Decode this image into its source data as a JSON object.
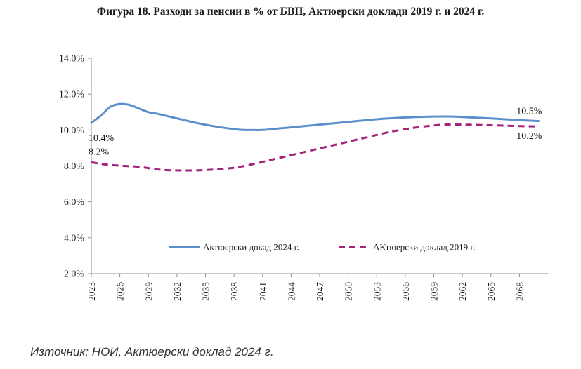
{
  "title": "Фигура 18. Разходи за пенсии в % от БВП, Актюерски доклади 2019 г. и  2024 г.",
  "source": "Източник: НОИ, Актюерски доклад 2024 г.",
  "colors": {
    "series_2024": "#5b8fcc",
    "series_2019": "#a3237c",
    "axis": "#8c8c8c"
  },
  "chart_data": {
    "type": "line",
    "ylim": [
      2,
      14
    ],
    "y_ticks": [
      "2.0%",
      "4.0%",
      "6.0%",
      "8.0%",
      "10.0%",
      "12.0%",
      "14.0%"
    ],
    "x_range": [
      2023,
      2071
    ],
    "x_ticks": [
      "2023",
      "2026",
      "2029",
      "2032",
      "2035",
      "2038",
      "2041",
      "2044",
      "2047",
      "2050",
      "2053",
      "2056",
      "2059",
      "2062",
      "2065",
      "2068"
    ],
    "legend_position": "bottom-center",
    "series": [
      {
        "name": "Актюерски докад 2024 г.",
        "style": "solid",
        "x": [
          2023,
          2024,
          2025,
          2026,
          2027,
          2028,
          2029,
          2030,
          2032,
          2034,
          2036,
          2038,
          2039,
          2040,
          2041,
          2043,
          2045,
          2048,
          2050,
          2053,
          2056,
          2059,
          2061,
          2063,
          2065,
          2068,
          2070
        ],
        "y": [
          10.4,
          10.8,
          11.3,
          11.45,
          11.4,
          11.2,
          11.0,
          10.9,
          10.65,
          10.4,
          10.2,
          10.05,
          10.0,
          10.0,
          10.0,
          10.1,
          10.2,
          10.35,
          10.45,
          10.6,
          10.7,
          10.75,
          10.75,
          10.7,
          10.65,
          10.55,
          10.5
        ],
        "start_label": "10.4%",
        "end_label": "10.5%"
      },
      {
        "name": "АКтюерски доклад 2019 г.",
        "style": "dashed",
        "x": [
          2023,
          2025,
          2028,
          2030,
          2032,
          2034,
          2036,
          2038,
          2040,
          2042,
          2044,
          2046,
          2048,
          2050,
          2052,
          2054,
          2056,
          2058,
          2060,
          2062,
          2064,
          2066,
          2068,
          2070
        ],
        "y": [
          8.2,
          8.05,
          7.95,
          7.8,
          7.75,
          7.75,
          7.8,
          7.9,
          8.1,
          8.35,
          8.6,
          8.85,
          9.1,
          9.35,
          9.6,
          9.85,
          10.05,
          10.2,
          10.3,
          10.3,
          10.28,
          10.25,
          10.22,
          10.2
        ],
        "start_label": "8.2%",
        "end_label": "10.2%"
      }
    ]
  }
}
